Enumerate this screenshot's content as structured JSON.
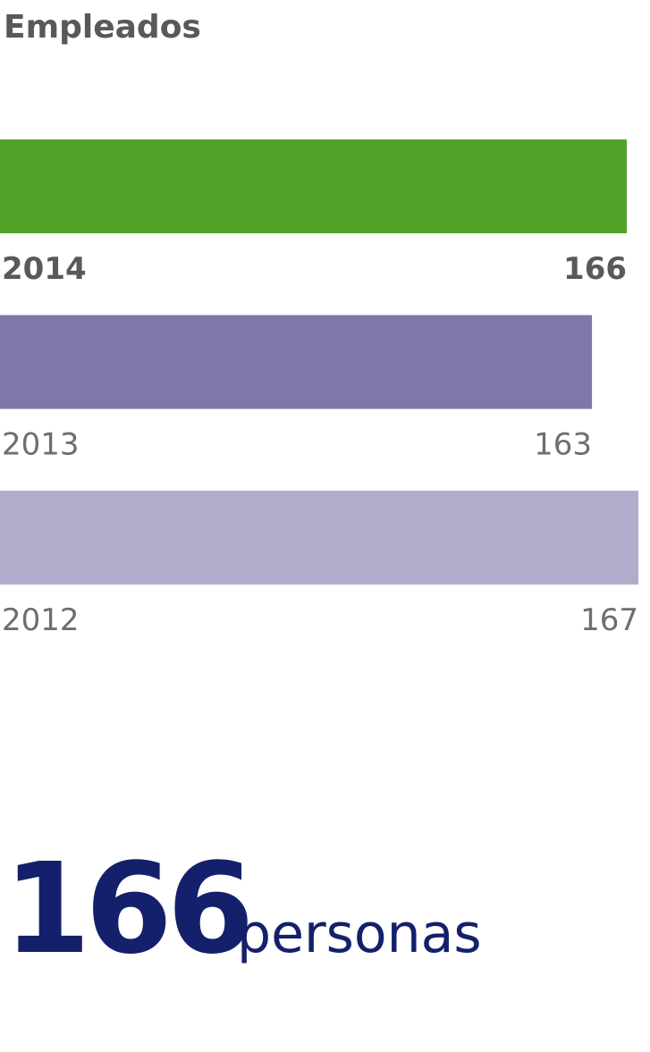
{
  "chart_data": {
    "type": "hbar",
    "title": "Empleados",
    "categories": [
      "2014",
      "2013",
      "2012"
    ],
    "values": [
      166,
      163,
      167
    ],
    "colors": [
      "#52a128",
      "#8077a8",
      "#b1abcc"
    ],
    "xlim": [
      112,
      168
    ],
    "total": 166,
    "total_unit": "personas"
  }
}
